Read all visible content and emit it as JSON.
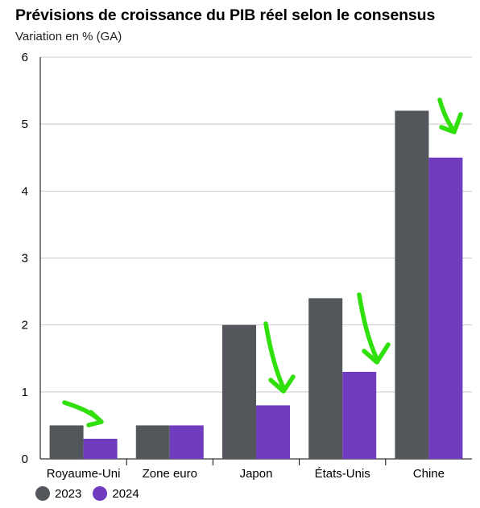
{
  "title": "Prévisions de croissance du PIB réel selon le consensus",
  "subtitle": "Variation en % (GA)",
  "colors": {
    "2023": "#53565a",
    "2024": "#6f3bbf",
    "arrow": "#2fe00c",
    "grid": "#c8c8c8"
  },
  "chart_data": {
    "type": "bar",
    "title": "Prévisions de croissance du PIB réel selon le consensus",
    "ylabel": "Variation en % (GA)",
    "categories": [
      "Royaume-Uni",
      "Zone euro",
      "Japon",
      "États-Unis",
      "Chine"
    ],
    "series": [
      {
        "name": "2023",
        "values": [
          0.5,
          0.5,
          2.0,
          2.4,
          5.2
        ]
      },
      {
        "name": "2024",
        "values": [
          0.3,
          0.5,
          0.8,
          1.3,
          4.5
        ]
      }
    ],
    "yticks": [
      "0",
      "1",
      "2",
      "3",
      "4",
      "5",
      "6"
    ],
    "ylim": [
      0,
      6
    ],
    "grid": true,
    "legend": "bottom-left",
    "annotations": "green hand-drawn arrows pointing down to the 2024 bars of Royaume-Uni, Japon, États-Unis and Chine"
  }
}
